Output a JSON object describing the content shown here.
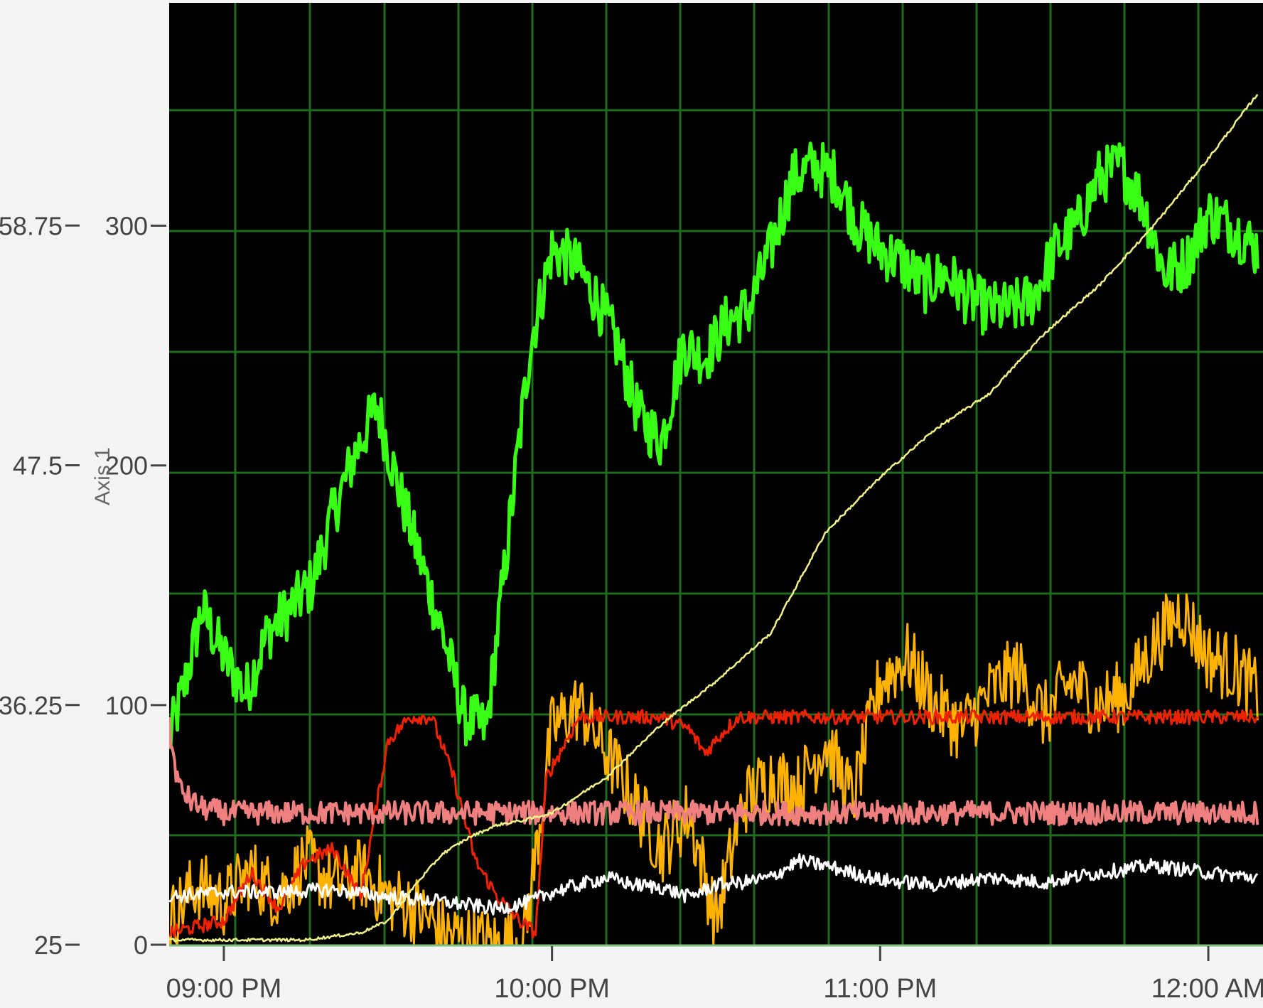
{
  "colors": {
    "page_background": "#f4f4f4",
    "plot_background": "#000000",
    "grid": "#1f6b1f",
    "axis_text": "#444444",
    "series_green": "#39ff14",
    "series_orange": "#ffb300",
    "series_red": "#ee2200",
    "series_pink": "#f08080",
    "series_white": "#ffffff",
    "series_yellow": "#f2f28a"
  },
  "chart_data": {
    "type": "line",
    "title": "",
    "xlabel": "",
    "ylabel": "Axis 1",
    "grid": true,
    "legend": "none",
    "x_range": [
      "08:50 PM",
      "12:10 AM"
    ],
    "x_ticks": [
      "09:00 PM",
      "10:00 PM",
      "11:00 PM",
      "12:00 AM"
    ],
    "y_left_outer": {
      "ticks": [
        "25",
        "36.25",
        "47.5",
        "58.75"
      ],
      "range": [
        25,
        69.2
      ]
    },
    "y_left_inner": {
      "ticks": [
        "0",
        "100",
        "200",
        "300"
      ],
      "range": [
        0,
        393
      ]
    },
    "series": [
      {
        "color": "series_green",
        "noise": 12,
        "x": [
          "08:50 PM",
          "08:53 PM",
          "08:56 PM",
          "09:00 PM",
          "09:04 PM",
          "09:08 PM",
          "09:12 PM",
          "09:16 PM",
          "09:20 PM",
          "09:24 PM",
          "09:28 PM",
          "09:32 PM",
          "09:36 PM",
          "09:40 PM",
          "09:44 PM",
          "09:48 PM",
          "09:52 PM",
          "09:56 PM",
          "10:00 PM",
          "10:04 PM",
          "10:08 PM",
          "10:12 PM",
          "10:16 PM",
          "10:20 PM",
          "10:24 PM",
          "10:28 PM",
          "10:32 PM",
          "10:36 PM",
          "10:40 PM",
          "10:44 PM",
          "10:48 PM",
          "10:52 PM",
          "10:56 PM",
          "11:00 PM",
          "11:04 PM",
          "11:08 PM",
          "11:12 PM",
          "11:16 PM",
          "11:20 PM",
          "11:24 PM",
          "11:28 PM",
          "11:32 PM",
          "11:36 PM",
          "11:40 PM",
          "11:44 PM",
          "11:48 PM",
          "11:52 PM",
          "11:56 PM",
          "12:00 AM",
          "12:04 AM",
          "12:09 AM"
        ],
        "values": [
          85,
          110,
          140,
          120,
          105,
          130,
          140,
          150,
          180,
          205,
          225,
          190,
          160,
          130,
          95,
          90,
          170,
          250,
          290,
          285,
          270,
          250,
          220,
          210,
          250,
          245,
          260,
          265,
          290,
          320,
          325,
          320,
          300,
          290,
          285,
          275,
          280,
          270,
          265,
          265,
          270,
          290,
          300,
          320,
          325,
          310,
          280,
          285,
          305,
          300,
          290
        ]
      },
      {
        "color": "series_orange",
        "noise": 15,
        "x": [
          "08:50 PM",
          "08:55 PM",
          "09:00 PM",
          "09:05 PM",
          "09:10 PM",
          "09:15 PM",
          "09:20 PM",
          "09:25 PM",
          "09:30 PM",
          "09:35 PM",
          "09:40 PM",
          "09:45 PM",
          "09:50 PM",
          "09:55 PM",
          "10:00 PM",
          "10:05 PM",
          "10:10 PM",
          "10:15 PM",
          "10:20 PM",
          "10:25 PM",
          "10:30 PM",
          "10:35 PM",
          "10:40 PM",
          "10:45 PM",
          "10:50 PM",
          "10:55 PM",
          "11:00 PM",
          "11:05 PM",
          "11:10 PM",
          "11:15 PM",
          "11:20 PM",
          "11:25 PM",
          "11:30 PM",
          "11:35 PM",
          "11:40 PM",
          "11:45 PM",
          "11:50 PM",
          "11:55 PM",
          "12:00 AM",
          "12:05 AM",
          "12:09 AM"
        ],
        "values": [
          10,
          25,
          18,
          30,
          20,
          35,
          25,
          30,
          20,
          15,
          5,
          2,
          0,
          3,
          90,
          100,
          80,
          60,
          40,
          55,
          10,
          60,
          70,
          65,
          85,
          60,
          110,
          120,
          100,
          90,
          105,
          115,
          95,
          110,
          100,
          105,
          125,
          140,
          120,
          115,
          105
        ]
      },
      {
        "color": "series_red",
        "noise": 3,
        "x": [
          "08:50 PM",
          "09:00 PM",
          "09:05 PM",
          "09:10 PM",
          "09:15 PM",
          "09:20 PM",
          "09:25 PM",
          "09:30 PM",
          "09:34 PM",
          "09:38 PM",
          "09:42 PM",
          "09:46 PM",
          "09:50 PM",
          "09:54 PM",
          "09:57 PM",
          "09:59 PM",
          "10:05 PM",
          "10:10 PM",
          "10:15 PM",
          "10:20 PM",
          "10:25 PM",
          "10:28 PM",
          "10:31 PM",
          "10:34 PM",
          "10:40 PM",
          "11:00 PM",
          "11:30 PM",
          "12:00 AM",
          "12:09 AM"
        ],
        "values": [
          5,
          10,
          30,
          15,
          35,
          40,
          20,
          85,
          95,
          95,
          70,
          35,
          20,
          10,
          5,
          70,
          95,
          95,
          95,
          95,
          90,
          80,
          88,
          95,
          95,
          95,
          95,
          95,
          95
        ]
      },
      {
        "color": "series_pink",
        "noise": 5,
        "x": [
          "08:50 PM",
          "08:51 PM",
          "08:52 PM",
          "08:54 PM",
          "08:56 PM",
          "09:00 PM",
          "09:10 PM",
          "09:20 PM",
          "09:30 PM",
          "09:40 PM",
          "09:50 PM",
          "10:00 PM",
          "10:20 PM",
          "10:40 PM",
          "11:00 PM",
          "11:20 PM",
          "11:40 PM",
          "12:00 AM",
          "12:09 AM"
        ],
        "values": [
          90,
          75,
          65,
          60,
          57,
          55,
          55,
          55,
          55,
          55,
          55,
          55,
          55,
          55,
          55,
          55,
          55,
          55,
          55
        ]
      },
      {
        "color": "series_white",
        "noise": 3,
        "x": [
          "08:50 PM",
          "09:00 PM",
          "09:10 PM",
          "09:20 PM",
          "09:30 PM",
          "09:40 PM",
          "09:50 PM",
          "09:56 PM",
          "10:00 PM",
          "10:05 PM",
          "10:10 PM",
          "10:15 PM",
          "10:20 PM",
          "10:25 PM",
          "10:30 PM",
          "10:35 PM",
          "10:40 PM",
          "10:45 PM",
          "10:50 PM",
          "10:55 PM",
          "11:00 PM",
          "11:10 PM",
          "11:20 PM",
          "11:30 PM",
          "11:40 PM",
          "11:50 PM",
          "12:00 AM",
          "12:09 AM"
        ],
        "values": [
          20,
          22,
          22,
          23,
          20,
          18,
          15,
          18,
          22,
          25,
          28,
          25,
          24,
          20,
          25,
          26,
          28,
          35,
          33,
          30,
          27,
          25,
          28,
          26,
          30,
          33,
          30,
          28
        ]
      },
      {
        "color": "series_yellow",
        "noise": 0.6,
        "x": [
          "08:50 PM",
          "09:00 PM",
          "09:15 PM",
          "09:25 PM",
          "09:30 PM",
          "09:35 PM",
          "09:40 PM",
          "09:45 PM",
          "09:50 PM",
          "09:55 PM",
          "10:00 PM",
          "10:10 PM",
          "10:20 PM",
          "10:30 PM",
          "10:40 PM",
          "10:50 PM",
          "11:00 PM",
          "11:10 PM",
          "11:20 PM",
          "11:30 PM",
          "11:40 PM",
          "11:50 PM",
          "12:00 AM",
          "12:09 AM"
        ],
        "values": [
          2,
          2,
          2,
          5,
          10,
          25,
          38,
          45,
          50,
          52,
          55,
          70,
          92,
          110,
          130,
          172,
          195,
          215,
          230,
          255,
          275,
          300,
          328,
          355
        ]
      }
    ]
  }
}
